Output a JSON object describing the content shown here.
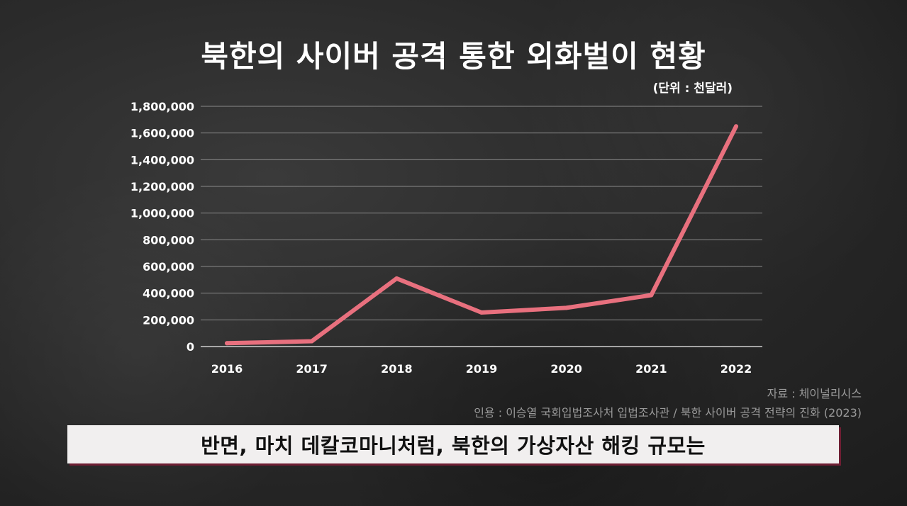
{
  "header": {
    "title": "북한의 사이버 공격 통한 외화벌이 현황",
    "unit": "(단위 : 천달러)"
  },
  "footer": {
    "source": "자료 : 체이널리시스",
    "citation": "인용 : 이승열 국회입법조사처 입법조사관 / 북한 사이버 공격 전략의 진화 (2023)"
  },
  "caption": {
    "text": "반면, 마치 데칼코마니처럼, 북한의 가상자산 해킹 규모는"
  },
  "colors": {
    "line": "#e8707e",
    "grid": "#8a8a8a",
    "subtitle_accent": "#6e1e33"
  },
  "chart_data": {
    "type": "line",
    "title": "북한의 사이버 공격 통한 외화벌이 현황",
    "xlabel": "",
    "ylabel": "",
    "categories": [
      "2016",
      "2017",
      "2018",
      "2019",
      "2020",
      "2021",
      "2022"
    ],
    "values": [
      25000,
      40000,
      510000,
      255000,
      290000,
      385000,
      1650000
    ],
    "ylim": [
      0,
      1800000
    ],
    "yticks": [
      0,
      200000,
      400000,
      600000,
      800000,
      1000000,
      1200000,
      1400000,
      1600000,
      1800000
    ],
    "ytick_labels": [
      "0",
      "200,000",
      "400,000",
      "600,000",
      "800,000",
      "1,000,000",
      "1,200,000",
      "1,400,000",
      "1,600,000",
      "1,800,000"
    ],
    "grid": true,
    "legend": "none"
  }
}
